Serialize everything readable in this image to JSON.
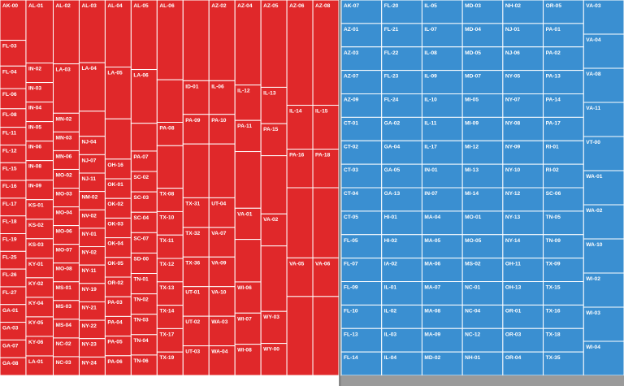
{
  "chart_data": {
    "type": "treemap",
    "title": "",
    "groups": [
      {
        "name": "R",
        "color": "#e0282a",
        "cols": [
          {
            "w": 0.4,
            "items": [
              {
                "label": "AK-00",
                "h": 0.5
              },
              {
                "label": "FL-03",
                "h": 0.32
              },
              {
                "label": "FL-04",
                "h": 0.28
              },
              {
                "label": "FL-06",
                "h": 0.25
              },
              {
                "label": "FL-08",
                "h": 0.23
              },
              {
                "label": "FL-11",
                "h": 0.22
              },
              {
                "label": "FL-12",
                "h": 0.22
              },
              {
                "label": "FL-15",
                "h": 0.22
              },
              {
                "label": "FL-16",
                "h": 0.22
              },
              {
                "label": "FL-17",
                "h": 0.22
              },
              {
                "label": "FL-18",
                "h": 0.22
              },
              {
                "label": "FL-19",
                "h": 0.22
              },
              {
                "label": "FL-25",
                "h": 0.22
              },
              {
                "label": "FL-26",
                "h": 0.22
              },
              {
                "label": "FL-27",
                "h": 0.22
              },
              {
                "label": "GA-01",
                "h": 0.22
              },
              {
                "label": "GA-03",
                "h": 0.22
              },
              {
                "label": "GA-07",
                "h": 0.22
              },
              {
                "label": "GA-08",
                "h": 0.22
              }
            ]
          },
          {
            "w": 0.42,
            "items": [
              {
                "label": "AL-01",
                "h": 0.71
              },
              {
                "label": "IN-02",
                "h": 0.22
              },
              {
                "label": "IN-03",
                "h": 0.22
              },
              {
                "label": "IN-04",
                "h": 0.22
              },
              {
                "label": "IN-05",
                "h": 0.22
              },
              {
                "label": "IN-06",
                "h": 0.22
              },
              {
                "label": "IN-08",
                "h": 0.22
              },
              {
                "label": "IN-09",
                "h": 0.22
              },
              {
                "label": "KS-01",
                "h": 0.22
              },
              {
                "label": "KS-02",
                "h": 0.22
              },
              {
                "label": "KS-03",
                "h": 0.22
              },
              {
                "label": "KY-01",
                "h": 0.22
              },
              {
                "label": "KY-02",
                "h": 0.22
              },
              {
                "label": "KY-04",
                "h": 0.22
              },
              {
                "label": "KY-05",
                "h": 0.22
              },
              {
                "label": "KY-06",
                "h": 0.22
              },
              {
                "label": "LA-01",
                "h": 0.22
              }
            ]
          },
          {
            "w": 0.4,
            "items": [
              {
                "label": "AL-02",
                "h": 0.75
              },
              {
                "label": "LA-03",
                "h": 0.58
              },
              {
                "label": "MN-02",
                "h": 0.22
              },
              {
                "label": "MN-03",
                "h": 0.22
              },
              {
                "label": "MN-06",
                "h": 0.22
              },
              {
                "label": "MO-02",
                "h": 0.22
              },
              {
                "label": "MO-03",
                "h": 0.22
              },
              {
                "label": "MO-04",
                "h": 0.22
              },
              {
                "label": "MO-06",
                "h": 0.22
              },
              {
                "label": "MO-07",
                "h": 0.22
              },
              {
                "label": "MO-08",
                "h": 0.22
              },
              {
                "label": "MS-01",
                "h": 0.22
              },
              {
                "label": "MS-03",
                "h": 0.22
              },
              {
                "label": "MS-04",
                "h": 0.22
              },
              {
                "label": "NC-02",
                "h": 0.22
              },
              {
                "label": "NC-03",
                "h": 0.22
              }
            ]
          },
          {
            "w": 0.4,
            "items": [
              {
                "label": "AL-03",
                "h": 0.75
              },
              {
                "label": "LA-04",
                "h": 0.58
              },
              {
                "label": "",
                "h": 0.3
              },
              {
                "label": "NJ-04",
                "h": 0.22
              },
              {
                "label": "NJ-07",
                "h": 0.22
              },
              {
                "label": "NJ-11",
                "h": 0.22
              },
              {
                "label": "NM-02",
                "h": 0.22
              },
              {
                "label": "NV-02",
                "h": 0.22
              },
              {
                "label": "NY-01",
                "h": 0.22
              },
              {
                "label": "NY-02",
                "h": 0.22
              },
              {
                "label": "NY-11",
                "h": 0.22
              },
              {
                "label": "NY-19",
                "h": 0.22
              },
              {
                "label": "NY-21",
                "h": 0.22
              },
              {
                "label": "NY-22",
                "h": 0.22
              },
              {
                "label": "NY-23",
                "h": 0.22
              },
              {
                "label": "NY-24",
                "h": 0.22
              }
            ]
          },
          {
            "w": 0.4,
            "items": [
              {
                "label": "AL-04",
                "h": 0.75
              },
              {
                "label": "LA-05",
                "h": 0.58
              },
              {
                "label": "",
                "h": 0.45
              },
              {
                "label": "OH-16",
                "h": 0.22
              },
              {
                "label": "OK-01",
                "h": 0.22
              },
              {
                "label": "OK-02",
                "h": 0.22
              },
              {
                "label": "OK-03",
                "h": 0.22
              },
              {
                "label": "OK-04",
                "h": 0.22
              },
              {
                "label": "OK-05",
                "h": 0.22
              },
              {
                "label": "OR-02",
                "h": 0.22
              },
              {
                "label": "PA-03",
                "h": 0.22
              },
              {
                "label": "PA-04",
                "h": 0.22
              },
              {
                "label": "PA-05",
                "h": 0.22
              },
              {
                "label": "PA-06",
                "h": 0.22
              }
            ]
          },
          {
            "w": 0.4,
            "items": [
              {
                "label": "AL-05",
                "h": 0.75
              },
              {
                "label": "LA-06",
                "h": 0.58
              },
              {
                "label": "",
                "h": 0.3
              },
              {
                "label": "PA-07",
                "h": 0.22
              },
              {
                "label": "SC-02",
                "h": 0.22
              },
              {
                "label": "SC-03",
                "h": 0.22
              },
              {
                "label": "SC-04",
                "h": 0.22
              },
              {
                "label": "SC-07",
                "h": 0.22
              },
              {
                "label": "SD-00",
                "h": 0.22
              },
              {
                "label": "TN-01",
                "h": 0.22
              },
              {
                "label": "TN-02",
                "h": 0.22
              },
              {
                "label": "TN-03",
                "h": 0.22
              },
              {
                "label": "TN-04",
                "h": 0.22
              },
              {
                "label": "TN-06",
                "h": 0.22
              }
            ]
          },
          {
            "w": 0.4,
            "items": [
              {
                "label": "AL-06",
                "h": 0.75
              },
              {
                "label": "",
                "h": 0.4
              },
              {
                "label": "PA-08",
                "h": 0.22
              },
              {
                "label": "",
                "h": 0.4
              },
              {
                "label": "TX-08",
                "h": 0.22
              },
              {
                "label": "TX-10",
                "h": 0.22
              },
              {
                "label": "TX-11",
                "h": 0.22
              },
              {
                "label": "TX-12",
                "h": 0.22
              },
              {
                "label": "TX-13",
                "h": 0.22
              },
              {
                "label": "TX-14",
                "h": 0.22
              },
              {
                "label": "TX-17",
                "h": 0.22
              },
              {
                "label": "TX-19",
                "h": 0.22
              }
            ]
          },
          {
            "w": 0.4,
            "items": [
              {
                "label": "",
                "h": 0.6
              },
              {
                "label": "ID-01",
                "h": 0.25
              },
              {
                "label": "PA-09",
                "h": 0.22
              },
              {
                "label": "",
                "h": 0.4
              },
              {
                "label": "TX-31",
                "h": 0.22
              },
              {
                "label": "TX-32",
                "h": 0.22
              },
              {
                "label": "TX-36",
                "h": 0.22
              },
              {
                "label": "UT-01",
                "h": 0.22
              },
              {
                "label": "UT-02",
                "h": 0.22
              },
              {
                "label": "UT-03",
                "h": 0.22
              }
            ]
          },
          {
            "w": 0.4,
            "items": [
              {
                "label": "AZ-02",
                "h": 0.6
              },
              {
                "label": "IL-06",
                "h": 0.25
              },
              {
                "label": "PA-10",
                "h": 0.22
              },
              {
                "label": "",
                "h": 0.4
              },
              {
                "label": "UT-04",
                "h": 0.22
              },
              {
                "label": "VA-07",
                "h": 0.22
              },
              {
                "label": "VA-09",
                "h": 0.22
              },
              {
                "label": "VA-10",
                "h": 0.22
              },
              {
                "label": "WA-03",
                "h": 0.22
              },
              {
                "label": "WA-04",
                "h": 0.22
              }
            ]
          },
          {
            "w": 0.4,
            "items": [
              {
                "label": "AZ-04",
                "h": 0.6
              },
              {
                "label": "IL-12",
                "h": 0.25
              },
              {
                "label": "PA-11",
                "h": 0.22
              },
              {
                "label": "",
                "h": 0.4
              },
              {
                "label": "VA-01",
                "h": 0.22
              },
              {
                "label": "",
                "h": 0.3
              },
              {
                "label": "WI-06",
                "h": 0.22
              },
              {
                "label": "WI-07",
                "h": 0.22
              },
              {
                "label": "WI-08",
                "h": 0.22
              }
            ]
          },
          {
            "w": 0.4,
            "items": [
              {
                "label": "AZ-05",
                "h": 0.6
              },
              {
                "label": "IL-13",
                "h": 0.25
              },
              {
                "label": "PA-15",
                "h": 0.22
              },
              {
                "label": "",
                "h": 0.4
              },
              {
                "label": "VA-02",
                "h": 0.22
              },
              {
                "label": "",
                "h": 0.45
              },
              {
                "label": "WY-03",
                "h": 0.22
              },
              {
                "label": "WY-00",
                "h": 0.22
              }
            ]
          },
          {
            "w": 0.4,
            "items": [
              {
                "label": "AZ-06",
                "h": 0.6
              },
              {
                "label": "IL-14",
                "h": 0.25
              },
              {
                "label": "PA-16",
                "h": 0.22
              },
              {
                "label": "",
                "h": 0.4
              },
              {
                "label": "VA-05",
                "h": 0.22
              },
              {
                "label": "",
                "h": 0.45
              }
            ]
          },
          {
            "w": 0.4,
            "items": [
              {
                "label": "AZ-08",
                "h": 0.6
              },
              {
                "label": "IL-15",
                "h": 0.25
              },
              {
                "label": "PA-18",
                "h": 0.22
              },
              {
                "label": "",
                "h": 0.4
              },
              {
                "label": "VA-06",
                "h": 0.22
              },
              {
                "label": "",
                "h": 0.45
              }
            ]
          }
        ],
        "extra_labels": [
          "FL-01",
          "FL-02",
          "IA-01",
          "IA-03",
          "IA-04",
          "ID-02",
          "IL-16",
          "IL-18",
          "MI-01",
          "MI-02",
          "MI-03",
          "MI-04",
          "MI-06",
          "MI-07",
          "MI-08",
          "MI-10",
          "MI-11",
          "PA-12",
          "PA-14",
          "TN-05",
          "TN-07",
          "TN-08"
        ]
      },
      {
        "name": "D",
        "color": "#3a8fd1",
        "labels": [
          "AK-07",
          "AZ-01",
          "AZ-03",
          "AZ-07",
          "AZ-09",
          "CT-01",
          "CT-02",
          "CT-03",
          "CT-04",
          "CT-05",
          "FL-05",
          "FL-07",
          "FL-09",
          "FL-10",
          "FL-13",
          "FL-14",
          "FL-20",
          "FL-21",
          "FL-22",
          "FL-23",
          "FL-24",
          "GA-02",
          "GA-04",
          "GA-05",
          "GA-13",
          "HI-01",
          "HI-02",
          "IA-02",
          "IL-01",
          "IL-02",
          "IL-03",
          "IL-04",
          "IL-05",
          "IL-07",
          "IL-08",
          "IL-09",
          "IL-10",
          "IL-11",
          "IL-17",
          "IN-01",
          "IN-07",
          "MA-04",
          "MA-05",
          "MA-06",
          "MA-07",
          "MA-08",
          "MA-09",
          "MD-02",
          "MD-03",
          "MD-04",
          "MD-05",
          "MD-07",
          "MI-05",
          "MI-09",
          "MI-12",
          "MI-13",
          "MI-14",
          "MO-01",
          "MO-05",
          "MS-02",
          "NC-01",
          "NC-04",
          "NC-12",
          "NH-01",
          "NH-02",
          "NJ-01",
          "NJ-06",
          "NY-05",
          "NY-07",
          "NY-08",
          "NY-09",
          "NY-10",
          "NY-12",
          "NY-13",
          "NY-14",
          "OH-11",
          "OH-13",
          "OR-01",
          "OR-03",
          "OR-04",
          "OR-05",
          "PA-01",
          "PA-02",
          "PA-13",
          "PA-14",
          "PA-17",
          "RI-01",
          "RI-02",
          "SC-06",
          "TN-05",
          "TN-09",
          "TX-09",
          "TX-15",
          "TX-16",
          "TX-18",
          "TX-35",
          "VA-03",
          "VA-04",
          "VA-08",
          "VA-11",
          "VT-00",
          "WA-01",
          "WA-02",
          "WA-10",
          "WI-02",
          "WI-03",
          "WI-04"
        ]
      }
    ]
  }
}
